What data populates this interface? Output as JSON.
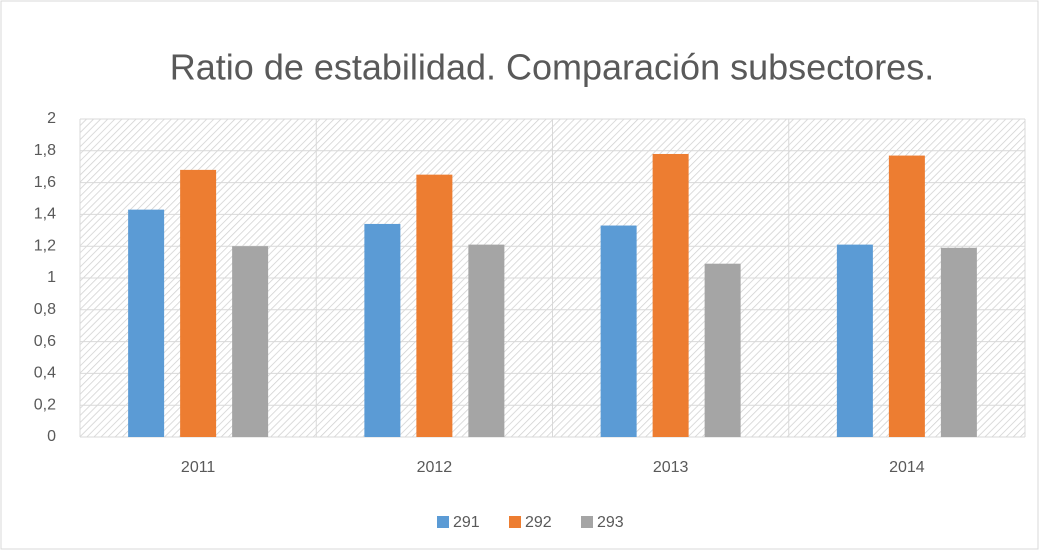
{
  "chart_data": {
    "type": "bar",
    "title": "Ratio de estabilidad. Comparación subsectores.",
    "categories": [
      "2011",
      "2012",
      "2013",
      "2014"
    ],
    "series": [
      {
        "name": "291",
        "color": "#5b9bd5",
        "values": [
          1.43,
          1.34,
          1.33,
          1.21
        ]
      },
      {
        "name": "292",
        "color": "#ed7d31",
        "values": [
          1.68,
          1.65,
          1.78,
          1.77
        ]
      },
      {
        "name": "293",
        "color": "#a5a5a5",
        "values": [
          1.2,
          1.21,
          1.09,
          1.19
        ]
      }
    ],
    "ylim": [
      0,
      2
    ],
    "yticks": [
      0,
      {
        "value": 0.2,
        "label": "0,2"
      },
      {
        "value": 0.4,
        "label": "0,4"
      },
      {
        "value": 0.6,
        "label": "0,6"
      },
      {
        "value": 0.8,
        "label": "0,8"
      },
      1,
      {
        "value": 1.2,
        "label": "1,2"
      },
      {
        "value": 1.4,
        "label": "1,4"
      },
      {
        "value": 1.6,
        "label": "1,6"
      },
      {
        "value": 1.8,
        "label": "1,8"
      },
      2
    ],
    "grid": true,
    "legend": "bottom"
  }
}
